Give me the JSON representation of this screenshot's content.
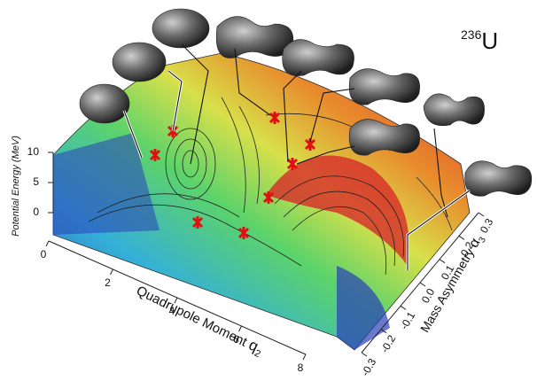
{
  "title": {
    "mass_number": "236",
    "nucleus": "U"
  },
  "axes": {
    "energy": {
      "label": "Potential Energy (MeV)",
      "ticks": [
        0,
        5,
        10
      ]
    },
    "q2": {
      "label": "Quadrupole Moment",
      "symbol": "q",
      "subscript": "2",
      "ticks": [
        0,
        2,
        4,
        6,
        8
      ]
    },
    "alpha": {
      "label": "Mass Asymmetry",
      "symbol": "α",
      "subscript": "3",
      "ticks": [
        -0.3,
        -0.2,
        -0.1,
        {
          "value": 0,
          "label": "0.0"
        },
        0.1,
        0.2,
        0.3
      ]
    }
  }
}
